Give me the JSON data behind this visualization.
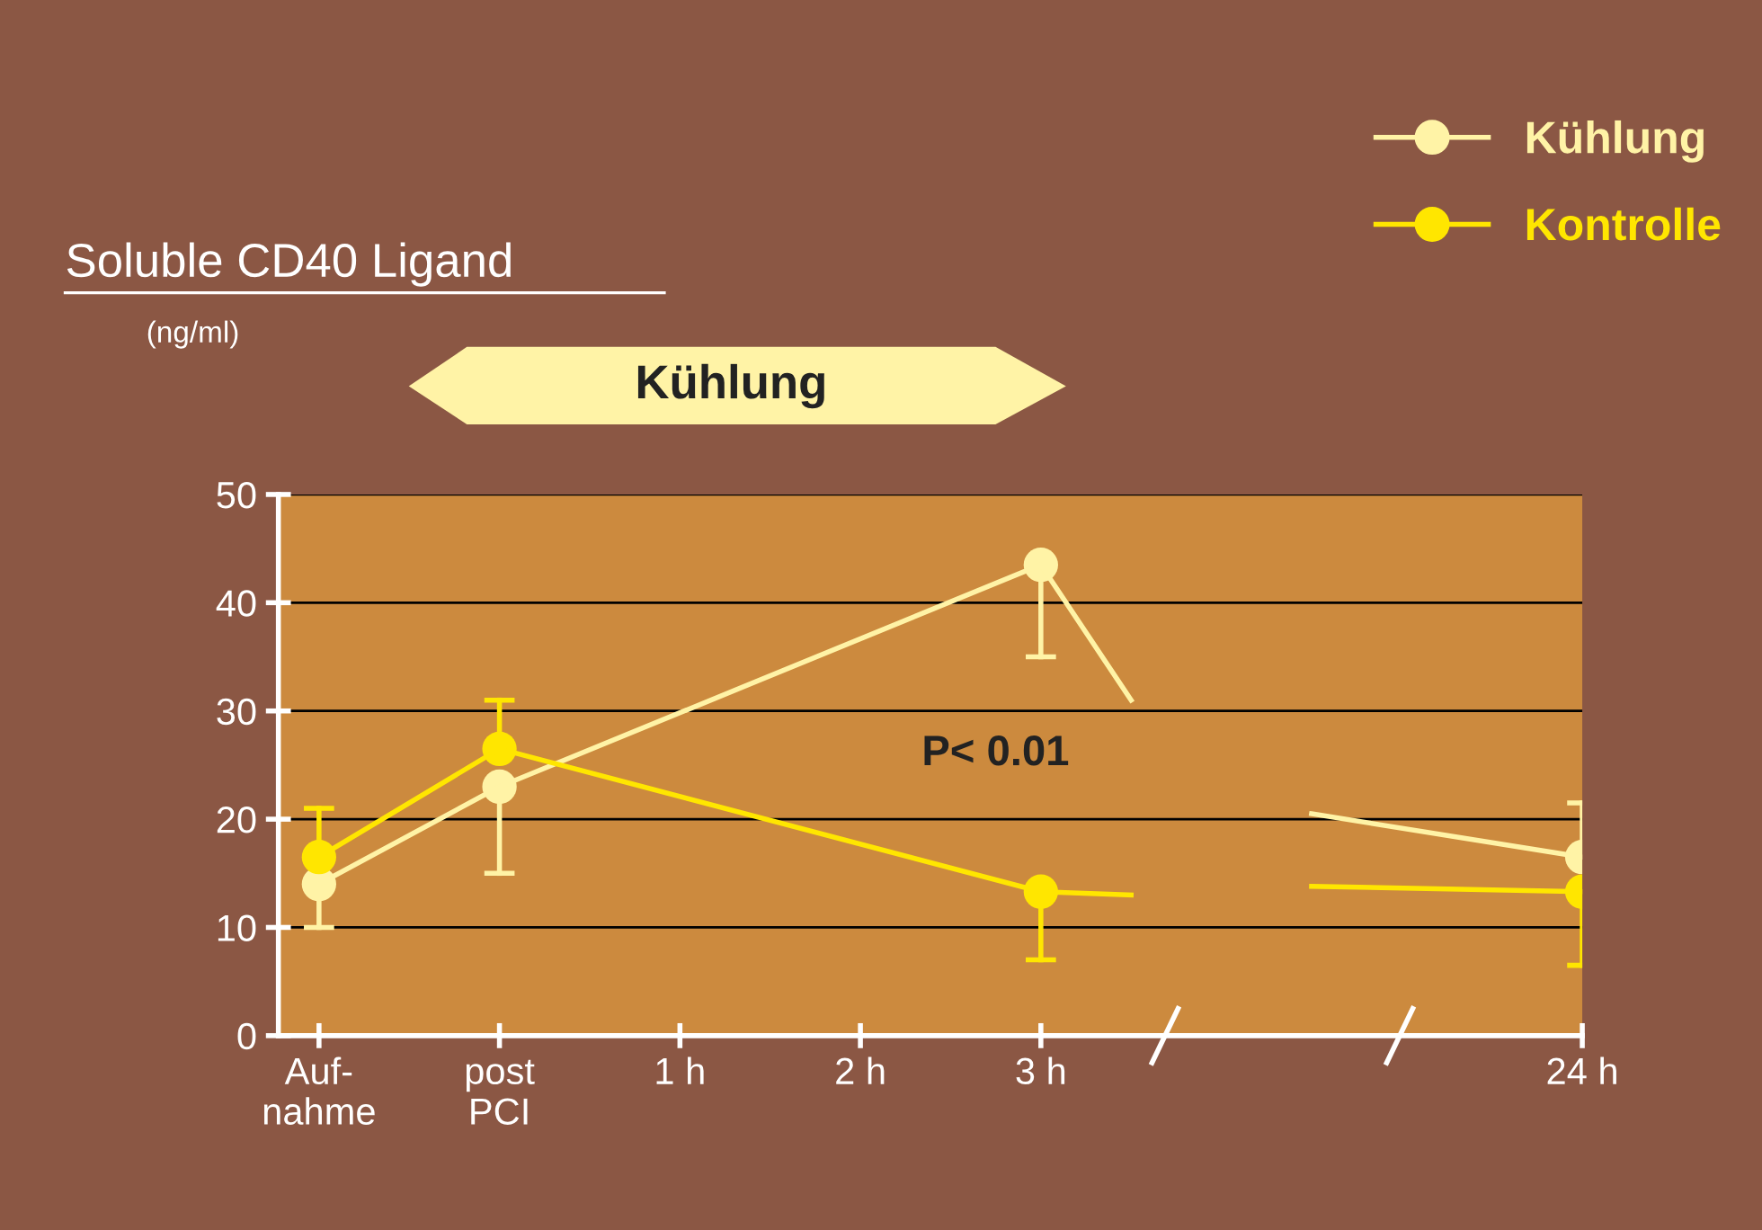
{
  "chart_data": {
    "type": "scatter",
    "title": "Soluble CD40 Ligand",
    "subtitle": "(ng/ml)",
    "annotations": [
      "Kühlung",
      "P< 0.01"
    ],
    "categories": [
      "Auf-\nnahme",
      null,
      "post\nPCI",
      null,
      "1 h",
      null,
      "2 h",
      null,
      "3 h",
      null,
      null,
      null,
      null,
      null,
      "24 h"
    ],
    "ylim": [
      0,
      50
    ],
    "yticks": [
      0,
      10,
      20,
      30,
      40,
      50
    ],
    "grid": "y",
    "legend": "top right",
    "marker": "circle",
    "series": [
      {
        "name": "Kühlung",
        "color": "#fff3a6",
        "values": [
          14,
          null,
          23,
          null,
          null,
          null,
          null,
          null,
          43.5,
          null,
          null,
          null,
          null,
          null,
          16.5
        ],
        "errors": [
          [
            10,
            14
          ],
          null,
          [
            15,
            23
          ],
          null,
          null,
          null,
          null,
          null,
          [
            35,
            43.5
          ],
          null,
          null,
          null,
          null,
          null,
          [
            16.5,
            21.5
          ]
        ]
      },
      {
        "name": "Kontrolle",
        "color": "#ffe600",
        "values": [
          16.5,
          null,
          26.5,
          null,
          null,
          null,
          null,
          null,
          13.3,
          null,
          null,
          null,
          null,
          null,
          13.3
        ],
        "errors": [
          [
            16.5,
            21
          ],
          null,
          [
            26.5,
            31
          ],
          null,
          null,
          null,
          null,
          null,
          [
            7,
            13.3
          ],
          null,
          null,
          null,
          null,
          null,
          [
            6.5,
            13.3
          ]
        ]
      },
      {
        "type": "line",
        "marker": "none",
        "color": "#fff3a6",
        "values": [
          14,
          null,
          23,
          null,
          null,
          null,
          null,
          null,
          43.5,
          31,
          null,
          null,
          null,
          null,
          null
        ]
      },
      {
        "type": "line",
        "marker": "none",
        "color": "#fff3a6",
        "values": [
          null,
          null,
          null,
          null,
          null,
          null,
          null,
          null,
          null,
          null,
          null,
          20.5,
          null,
          null,
          16.5
        ]
      },
      {
        "type": "line",
        "marker": "none",
        "color": "#ffe600",
        "values": [
          16.5,
          null,
          26.5,
          null,
          null,
          null,
          null,
          null,
          13.3,
          13,
          null,
          null,
          null,
          null,
          null
        ]
      },
      {
        "type": "line",
        "marker": "none",
        "color": "#ffe600",
        "values": [
          null,
          null,
          null,
          null,
          null,
          null,
          null,
          null,
          null,
          null,
          null,
          13.8,
          null,
          null,
          13.3
        ]
      }
    ]
  }
}
